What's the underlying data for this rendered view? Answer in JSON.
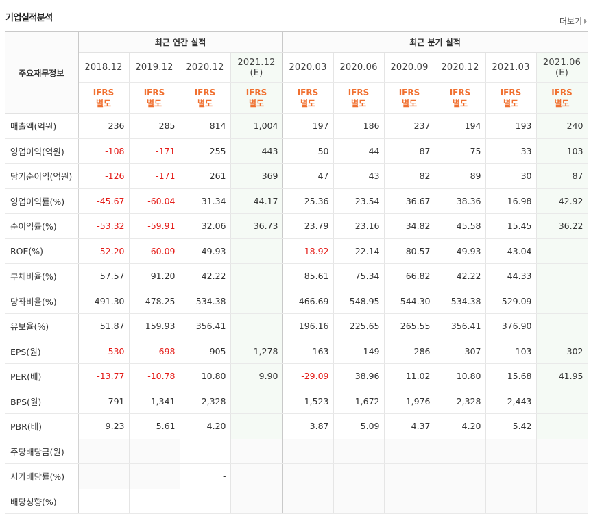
{
  "title": "기업실적분석",
  "more_label": "더보기",
  "header": {
    "label_col": "주요재무정보",
    "annual_group": "최근 연간 실적",
    "quarter_group": "최근 분기 실적",
    "annual_periods": [
      "2018.12",
      "2019.12",
      "2020.12",
      "2021.12\n(E)"
    ],
    "quarter_periods": [
      "2020.03",
      "2020.06",
      "2020.09",
      "2020.12",
      "2021.03",
      "2021.06\n(E)"
    ],
    "standard_line1": "IFRS",
    "standard_line2": "별도"
  },
  "rows": [
    {
      "label": "매출액(억원)",
      "values": [
        "236",
        "285",
        "814",
        "1,004",
        "197",
        "186",
        "237",
        "194",
        "193",
        "240"
      ],
      "neg": []
    },
    {
      "label": "영업이익(억원)",
      "values": [
        "-108",
        "-171",
        "255",
        "443",
        "50",
        "44",
        "87",
        "75",
        "33",
        "103"
      ],
      "neg": [
        0,
        1
      ]
    },
    {
      "label": "당기순이익(억원)",
      "values": [
        "-126",
        "-171",
        "261",
        "369",
        "47",
        "43",
        "82",
        "89",
        "30",
        "87"
      ],
      "neg": [
        0,
        1
      ]
    },
    {
      "label": "영업이익률(%)",
      "values": [
        "-45.67",
        "-60.04",
        "31.34",
        "44.17",
        "25.36",
        "23.54",
        "36.67",
        "38.36",
        "16.98",
        "42.92"
      ],
      "neg": [
        0,
        1
      ]
    },
    {
      "label": "순이익률(%)",
      "values": [
        "-53.32",
        "-59.91",
        "32.06",
        "36.73",
        "23.79",
        "23.16",
        "34.82",
        "45.58",
        "15.45",
        "36.22"
      ],
      "neg": [
        0,
        1
      ]
    },
    {
      "label": "ROE(%)",
      "values": [
        "-52.20",
        "-60.09",
        "49.93",
        "",
        "-18.92",
        "22.14",
        "80.57",
        "49.93",
        "43.04",
        ""
      ],
      "neg": [
        0,
        1,
        4
      ]
    },
    {
      "label": "부채비율(%)",
      "values": [
        "57.57",
        "91.20",
        "42.22",
        "",
        "85.61",
        "75.34",
        "66.82",
        "42.22",
        "44.33",
        ""
      ],
      "neg": []
    },
    {
      "label": "당좌비율(%)",
      "values": [
        "491.30",
        "478.25",
        "534.38",
        "",
        "466.69",
        "548.95",
        "544.30",
        "534.38",
        "529.09",
        ""
      ],
      "neg": []
    },
    {
      "label": "유보율(%)",
      "values": [
        "51.87",
        "159.93",
        "356.41",
        "",
        "196.16",
        "225.65",
        "265.55",
        "356.41",
        "376.90",
        ""
      ],
      "neg": []
    },
    {
      "label": "EPS(원)",
      "values": [
        "-530",
        "-698",
        "905",
        "1,278",
        "163",
        "149",
        "286",
        "307",
        "103",
        "302"
      ],
      "neg": [
        0,
        1
      ]
    },
    {
      "label": "PER(배)",
      "values": [
        "-13.77",
        "-10.78",
        "10.80",
        "9.90",
        "-29.09",
        "38.96",
        "11.02",
        "10.80",
        "15.68",
        "41.95"
      ],
      "neg": [
        0,
        1,
        4
      ]
    },
    {
      "label": "BPS(원)",
      "values": [
        "791",
        "1,341",
        "2,328",
        "",
        "1,523",
        "1,672",
        "1,976",
        "2,328",
        "2,443",
        ""
      ],
      "neg": []
    },
    {
      "label": "PBR(배)",
      "values": [
        "9.23",
        "5.61",
        "4.20",
        "",
        "3.87",
        "5.09",
        "4.37",
        "4.20",
        "5.42",
        ""
      ],
      "neg": []
    },
    {
      "label": "주당배당금(원)",
      "values": [
        "",
        "",
        "-",
        "",
        "",
        "",
        "",
        "",
        "",
        ""
      ],
      "neg": []
    },
    {
      "label": "시가배당률(%)",
      "values": [
        "",
        "",
        "-",
        "",
        "",
        "",
        "",
        "",
        "",
        ""
      ],
      "neg": []
    },
    {
      "label": "배당성향(%)",
      "values": [
        "-",
        "-",
        "-",
        "",
        "",
        "",
        "",
        "",
        "",
        ""
      ],
      "neg": []
    }
  ],
  "colors": {
    "negative": "#e41b17",
    "ifrs": "#f07030",
    "estimate_bg": "#f5faf5"
  }
}
